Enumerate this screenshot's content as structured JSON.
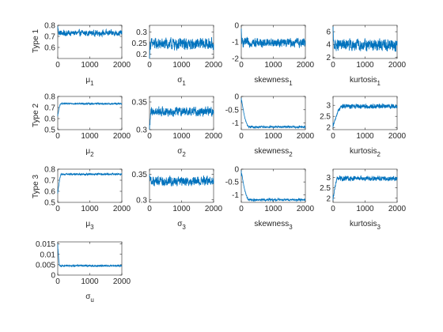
{
  "figure": {
    "row_labels": [
      "Type 1",
      "Type 2",
      "Type 3"
    ],
    "line_color": "#0072BD"
  },
  "chart_data": [
    {
      "type": "line",
      "id": "mu1",
      "xlabel": "μ",
      "xlabel_sub": "1",
      "xlim": [
        0,
        2000
      ],
      "ylim": [
        0.5,
        0.8
      ],
      "xticks": [
        0,
        1000,
        2000
      ],
      "yticks": [
        0.6,
        0.7,
        0.8
      ],
      "ytick_labels": [
        "0.6",
        "0.7",
        "0.8"
      ],
      "series": [
        {
          "start": 0.79,
          "level": 0.73,
          "noise": 0.022,
          "burn": 40
        }
      ]
    },
    {
      "type": "line",
      "id": "sigma1",
      "xlabel": "σ",
      "xlabel_sub": "1",
      "xlim": [
        0,
        2000
      ],
      "ylim": [
        0.18,
        0.33
      ],
      "xticks": [
        0,
        1000,
        2000
      ],
      "yticks": [
        0.2,
        0.25,
        0.3
      ],
      "ytick_labels": [
        "0.2",
        "0.25",
        "0.3"
      ],
      "series": [
        {
          "start": 0.18,
          "level": 0.245,
          "noise": 0.022,
          "burn": 20
        }
      ]
    },
    {
      "type": "line",
      "id": "skew1",
      "xlabel": "skewness",
      "xlabel_sub": "1",
      "xlim": [
        0,
        2000
      ],
      "ylim": [
        -2,
        0
      ],
      "xticks": [
        0,
        1000,
        2000
      ],
      "yticks": [
        -2,
        -1,
        0
      ],
      "ytick_labels": [
        "-2",
        "-1",
        "0"
      ],
      "series": [
        {
          "start": -0.2,
          "level": -1.05,
          "noise": 0.22,
          "burn": 20
        }
      ]
    },
    {
      "type": "line",
      "id": "kurt1",
      "xlabel": "kurtosis",
      "xlabel_sub": "1",
      "xlim": [
        0,
        2000
      ],
      "ylim": [
        1.8,
        7
      ],
      "xticks": [
        0,
        1000,
        2000
      ],
      "yticks": [
        2,
        4,
        6
      ],
      "ytick_labels": [
        "2",
        "4",
        "6"
      ],
      "series": [
        {
          "start": 6.8,
          "level": 3.9,
          "noise": 0.75,
          "burn": 20
        }
      ]
    },
    {
      "type": "line",
      "id": "mu2",
      "xlabel": "μ",
      "xlabel_sub": "2",
      "xlim": [
        0,
        2000
      ],
      "ylim": [
        0.5,
        0.8
      ],
      "xticks": [
        0,
        1000,
        2000
      ],
      "yticks": [
        0.5,
        0.6,
        0.7,
        0.8
      ],
      "ytick_labels": [
        "0.5",
        "0.6",
        "0.7",
        "0.8"
      ],
      "series": [
        {
          "start": 0.62,
          "level": 0.735,
          "noise": 0.005,
          "burn": 100
        }
      ]
    },
    {
      "type": "line",
      "id": "sigma2",
      "xlabel": "σ",
      "xlabel_sub": "2",
      "xlim": [
        0,
        2000
      ],
      "ylim": [
        0.3,
        0.36
      ],
      "xticks": [
        0,
        1000,
        2000
      ],
      "yticks": [
        0.3,
        0.35
      ],
      "ytick_labels": [
        "0.3",
        "0.35"
      ],
      "series": [
        {
          "start": 0.3,
          "level": 0.333,
          "noise": 0.007,
          "burn": 60
        }
      ]
    },
    {
      "type": "line",
      "id": "skew2",
      "xlabel": "skewness",
      "xlabel_sub": "2",
      "xlim": [
        0,
        2000
      ],
      "ylim": [
        -1.25,
        0
      ],
      "xticks": [
        0,
        1000,
        2000
      ],
      "yticks": [
        -1,
        -0.5,
        0
      ],
      "ytick_labels": [
        "-1",
        "-0.5",
        "0"
      ],
      "series": [
        {
          "start": -0.05,
          "level": -1.15,
          "noise": 0.03,
          "burn": 250
        }
      ]
    },
    {
      "type": "line",
      "id": "kurt2",
      "xlabel": "kurtosis",
      "xlabel_sub": "2",
      "xlim": [
        0,
        2000
      ],
      "ylim": [
        1.9,
        3.4
      ],
      "xticks": [
        0,
        1000,
        2000
      ],
      "yticks": [
        2,
        2.5,
        3
      ],
      "ytick_labels": [
        "2",
        "2.5",
        "3"
      ],
      "series": [
        {
          "start": 2.0,
          "level": 2.95,
          "noise": 0.09,
          "burn": 300
        }
      ]
    },
    {
      "type": "line",
      "id": "mu3",
      "xlabel": "μ",
      "xlabel_sub": "3",
      "xlim": [
        0,
        2000
      ],
      "ylim": [
        0.5,
        0.8
      ],
      "xticks": [
        0,
        1000,
        2000
      ],
      "yticks": [
        0.5,
        0.6,
        0.7,
        0.8
      ],
      "ytick_labels": [
        "0.5",
        "0.6",
        "0.7",
        "0.8"
      ],
      "series": [
        {
          "start": 0.58,
          "level": 0.755,
          "noise": 0.006,
          "burn": 120
        }
      ]
    },
    {
      "type": "line",
      "id": "sigma3",
      "xlabel": "σ",
      "xlabel_sub": "3",
      "xlim": [
        0,
        2000
      ],
      "ylim": [
        0.295,
        0.36
      ],
      "xticks": [
        0,
        1000,
        2000
      ],
      "yticks": [
        0.3,
        0.35
      ],
      "ytick_labels": [
        "0.3",
        "0.35"
      ],
      "series": [
        {
          "start": 0.35,
          "level": 0.337,
          "noise": 0.008,
          "burn": 40
        }
      ]
    },
    {
      "type": "line",
      "id": "skew3",
      "xlabel": "skewness",
      "xlabel_sub": "3",
      "xlim": [
        0,
        2000
      ],
      "ylim": [
        -1.3,
        0
      ],
      "xticks": [
        0,
        1000,
        2000
      ],
      "yticks": [
        -1,
        -0.5,
        0
      ],
      "ytick_labels": [
        "-1",
        "-0.5",
        "0"
      ],
      "series": [
        {
          "start": -0.05,
          "level": -1.2,
          "noise": 0.035,
          "burn": 250
        }
      ]
    },
    {
      "type": "line",
      "id": "kurt3",
      "xlabel": "kurtosis",
      "xlabel_sub": "3",
      "xlim": [
        0,
        2000
      ],
      "ylim": [
        1.8,
        3.4
      ],
      "xticks": [
        0,
        1000,
        2000
      ],
      "yticks": [
        2,
        2.5,
        3
      ],
      "ytick_labels": [
        "2",
        "2.5",
        "3"
      ],
      "series": [
        {
          "start": 1.9,
          "level": 2.95,
          "noise": 0.1,
          "burn": 150
        }
      ]
    },
    {
      "type": "line",
      "id": "sigmau",
      "xlabel": "σ",
      "xlabel_sub": "u",
      "xlim": [
        0,
        2000
      ],
      "ylim": [
        0,
        0.016
      ],
      "xticks": [
        0,
        1000,
        2000
      ],
      "yticks": [
        0,
        0.005,
        0.01,
        0.015
      ],
      "ytick_labels": [
        "0",
        "0.005",
        "0.01",
        "0.015"
      ],
      "series": [
        {
          "start": 0.015,
          "level": 0.0045,
          "noise": 0.0003,
          "burn": 60
        }
      ]
    }
  ]
}
